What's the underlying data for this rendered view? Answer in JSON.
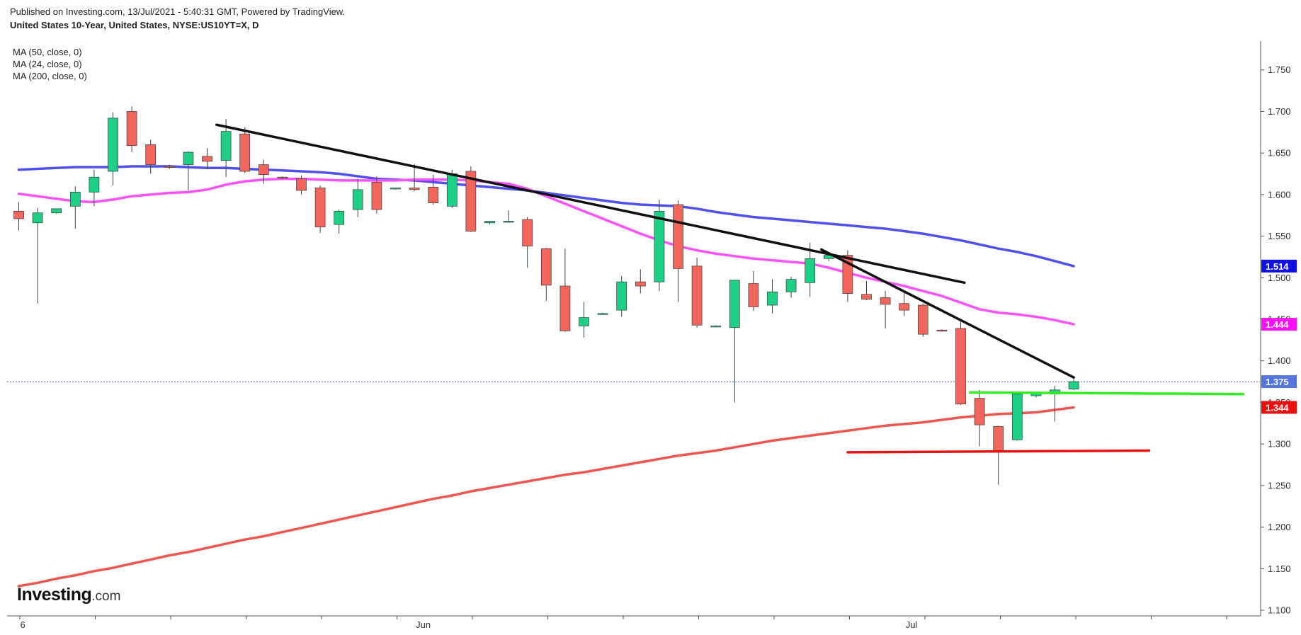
{
  "header": {
    "published": "Published on Investing.com, 13/Jul/2021 - 5:40:31 GMT, Powered by TradingView.",
    "instrument": "United States 10-Year, United States, NYSE:US10YT=X, D"
  },
  "legend": [
    "MA (50, close, 0)",
    "MA (24, close, 0)",
    "MA (200, close, 0)"
  ],
  "logo": {
    "main": "Investing",
    "suffix": ".com"
  },
  "colors": {
    "up": "#1ecf85",
    "down": "#f2665d",
    "wick": "#2e4a3c",
    "ma50": "#5050f0",
    "ma24": "#ff50ff",
    "ma200": "#f05550",
    "trend": "#111111",
    "support_green": "#33ee22",
    "support_red": "#ee1111",
    "last_price_line": "#4f6fd0"
  },
  "badges": [
    {
      "label": "1.514",
      "value": 1.514,
      "color": "#1010e0"
    },
    {
      "label": "1.444",
      "value": 1.444,
      "color": "#ff10ff"
    },
    {
      "label": "1.375",
      "value": 1.375,
      "color": "#5577dd"
    },
    {
      "label": "1.344",
      "value": 1.344,
      "color": "#ee1010"
    }
  ],
  "chart_data": {
    "type": "candlestick",
    "ylim": [
      1.1,
      1.76
    ],
    "y_ticks": [
      "1.750",
      "1.700",
      "1.650",
      "1.600",
      "1.550",
      "1.500",
      "1.450",
      "1.400",
      "1.350",
      "1.300",
      "1.250",
      "1.200",
      "1.150",
      "1.100"
    ],
    "x_labels": [
      {
        "label": "6",
        "index": 0
      },
      {
        "label": "Jun",
        "index": 21
      },
      {
        "label": "Jul",
        "index": 47
      }
    ],
    "grid": false,
    "last_price": 1.375,
    "candles": [
      {
        "o": 1.58,
        "h": 1.591,
        "l": 1.557,
        "c": 1.571
      },
      {
        "o": 1.566,
        "h": 1.584,
        "l": 1.469,
        "c": 1.578
      },
      {
        "o": 1.578,
        "h": 1.583,
        "l": 1.577,
        "c": 1.583
      },
      {
        "o": 1.586,
        "h": 1.61,
        "l": 1.559,
        "c": 1.603
      },
      {
        "o": 1.603,
        "h": 1.63,
        "l": 1.586,
        "c": 1.621
      },
      {
        "o": 1.628,
        "h": 1.699,
        "l": 1.611,
        "c": 1.692
      },
      {
        "o": 1.7,
        "h": 1.706,
        "l": 1.651,
        "c": 1.659
      },
      {
        "o": 1.66,
        "h": 1.666,
        "l": 1.625,
        "c": 1.636
      },
      {
        "o": 1.634,
        "h": 1.636,
        "l": 1.631,
        "c": 1.633
      },
      {
        "o": 1.636,
        "h": 1.652,
        "l": 1.605,
        "c": 1.651
      },
      {
        "o": 1.646,
        "h": 1.656,
        "l": 1.631,
        "c": 1.64
      },
      {
        "o": 1.641,
        "h": 1.691,
        "l": 1.621,
        "c": 1.676
      },
      {
        "o": 1.673,
        "h": 1.681,
        "l": 1.626,
        "c": 1.628
      },
      {
        "o": 1.636,
        "h": 1.642,
        "l": 1.613,
        "c": 1.624
      },
      {
        "o": 1.621,
        "h": 1.622,
        "l": 1.619,
        "c": 1.62
      },
      {
        "o": 1.619,
        "h": 1.623,
        "l": 1.6,
        "c": 1.605
      },
      {
        "o": 1.608,
        "h": 1.611,
        "l": 1.554,
        "c": 1.561
      },
      {
        "o": 1.564,
        "h": 1.582,
        "l": 1.553,
        "c": 1.58
      },
      {
        "o": 1.582,
        "h": 1.619,
        "l": 1.573,
        "c": 1.606
      },
      {
        "o": 1.615,
        "h": 1.622,
        "l": 1.577,
        "c": 1.582
      },
      {
        "o": 1.608,
        "h": 1.608,
        "l": 1.606,
        "c": 1.608
      },
      {
        "o": 1.608,
        "h": 1.637,
        "l": 1.604,
        "c": 1.606
      },
      {
        "o": 1.609,
        "h": 1.624,
        "l": 1.588,
        "c": 1.59
      },
      {
        "o": 1.586,
        "h": 1.63,
        "l": 1.584,
        "c": 1.625
      },
      {
        "o": 1.628,
        "h": 1.634,
        "l": 1.555,
        "c": 1.556
      },
      {
        "o": 1.566,
        "h": 1.568,
        "l": 1.564,
        "c": 1.568
      },
      {
        "o": 1.568,
        "h": 1.581,
        "l": 1.566,
        "c": 1.568
      },
      {
        "o": 1.57,
        "h": 1.573,
        "l": 1.512,
        "c": 1.538
      },
      {
        "o": 1.535,
        "h": 1.536,
        "l": 1.472,
        "c": 1.491
      },
      {
        "o": 1.49,
        "h": 1.535,
        "l": 1.435,
        "c": 1.436
      },
      {
        "o": 1.442,
        "h": 1.471,
        "l": 1.428,
        "c": 1.452
      },
      {
        "o": 1.457,
        "h": 1.458,
        "l": 1.456,
        "c": 1.457
      },
      {
        "o": 1.461,
        "h": 1.502,
        "l": 1.453,
        "c": 1.495
      },
      {
        "o": 1.495,
        "h": 1.51,
        "l": 1.481,
        "c": 1.49
      },
      {
        "o": 1.495,
        "h": 1.594,
        "l": 1.484,
        "c": 1.58
      },
      {
        "o": 1.588,
        "h": 1.593,
        "l": 1.471,
        "c": 1.511
      },
      {
        "o": 1.514,
        "h": 1.524,
        "l": 1.44,
        "c": 1.443
      },
      {
        "o": 1.442,
        "h": 1.443,
        "l": 1.441,
        "c": 1.442
      },
      {
        "o": 1.44,
        "h": 1.497,
        "l": 1.35,
        "c": 1.497
      },
      {
        "o": 1.493,
        "h": 1.508,
        "l": 1.46,
        "c": 1.465
      },
      {
        "o": 1.467,
        "h": 1.498,
        "l": 1.457,
        "c": 1.483
      },
      {
        "o": 1.483,
        "h": 1.501,
        "l": 1.476,
        "c": 1.498
      },
      {
        "o": 1.494,
        "h": 1.542,
        "l": 1.477,
        "c": 1.523
      },
      {
        "o": 1.523,
        "h": 1.53,
        "l": 1.52,
        "c": 1.527
      },
      {
        "o": 1.527,
        "h": 1.533,
        "l": 1.471,
        "c": 1.481
      },
      {
        "o": 1.48,
        "h": 1.496,
        "l": 1.473,
        "c": 1.474
      },
      {
        "o": 1.476,
        "h": 1.484,
        "l": 1.439,
        "c": 1.468
      },
      {
        "o": 1.469,
        "h": 1.484,
        "l": 1.454,
        "c": 1.461
      },
      {
        "o": 1.467,
        "h": 1.469,
        "l": 1.429,
        "c": 1.432
      },
      {
        "o": 1.437,
        "h": 1.438,
        "l": 1.435,
        "c": 1.436
      },
      {
        "o": 1.439,
        "h": 1.447,
        "l": 1.347,
        "c": 1.348
      },
      {
        "o": 1.355,
        "h": 1.365,
        "l": 1.297,
        "c": 1.323
      },
      {
        "o": 1.321,
        "h": 1.322,
        "l": 1.251,
        "c": 1.291
      },
      {
        "o": 1.305,
        "h": 1.362,
        "l": 1.304,
        "c": 1.36
      },
      {
        "o": 1.358,
        "h": 1.363,
        "l": 1.356,
        "c": 1.361
      },
      {
        "o": 1.36,
        "h": 1.37,
        "l": 1.327,
        "c": 1.365
      },
      {
        "o": 1.366,
        "h": 1.378,
        "l": 1.365,
        "c": 1.375
      }
    ],
    "moving_averages": [
      {
        "name": "MA (50, close, 0)",
        "key": "ma50",
        "from_index": 0,
        "values": [
          1.63,
          1.631,
          1.632,
          1.633,
          1.633,
          1.633,
          1.634,
          1.634,
          1.634,
          1.633,
          1.632,
          1.632,
          1.631,
          1.63,
          1.629,
          1.628,
          1.627,
          1.625,
          1.622,
          1.619,
          1.618,
          1.617,
          1.615,
          1.613,
          1.611,
          1.609,
          1.607,
          1.605,
          1.602,
          1.599,
          1.596,
          1.593,
          1.59,
          1.588,
          1.587,
          1.586,
          1.583,
          1.579,
          1.576,
          1.573,
          1.571,
          1.569,
          1.567,
          1.565,
          1.563,
          1.561,
          1.559,
          1.556,
          1.553,
          1.549,
          1.545,
          1.54,
          1.535,
          1.531,
          1.526,
          1.52,
          1.514
        ]
      },
      {
        "name": "MA (24, close, 0)",
        "key": "ma24",
        "from_index": 0,
        "values": [
          1.601,
          1.598,
          1.595,
          1.592,
          1.591,
          1.594,
          1.598,
          1.6,
          1.602,
          1.603,
          1.606,
          1.612,
          1.616,
          1.618,
          1.619,
          1.619,
          1.618,
          1.617,
          1.617,
          1.617,
          1.617,
          1.618,
          1.618,
          1.618,
          1.617,
          1.615,
          1.613,
          1.607,
          1.598,
          1.589,
          1.58,
          1.571,
          1.562,
          1.553,
          1.545,
          1.538,
          1.533,
          1.529,
          1.526,
          1.523,
          1.521,
          1.519,
          1.517,
          1.512,
          1.506,
          1.5,
          1.495,
          1.49,
          1.484,
          1.478,
          1.47,
          1.462,
          1.458,
          1.456,
          1.453,
          1.449,
          1.444
        ]
      },
      {
        "name": "MA (200, close, 0)",
        "key": "ma200",
        "from_index": 0,
        "values": [
          1.129,
          1.133,
          1.138,
          1.142,
          1.147,
          1.151,
          1.156,
          1.161,
          1.166,
          1.17,
          1.175,
          1.18,
          1.185,
          1.189,
          1.194,
          1.199,
          1.204,
          1.209,
          1.214,
          1.219,
          1.224,
          1.229,
          1.234,
          1.238,
          1.243,
          1.247,
          1.251,
          1.255,
          1.259,
          1.263,
          1.266,
          1.27,
          1.274,
          1.278,
          1.282,
          1.286,
          1.289,
          1.292,
          1.296,
          1.3,
          1.304,
          1.307,
          1.31,
          1.313,
          1.316,
          1.319,
          1.322,
          1.324,
          1.326,
          1.329,
          1.332,
          1.334,
          1.336,
          1.337,
          1.338,
          1.341,
          1.344
        ]
      }
    ],
    "annotations": [
      {
        "name": "downtrend-line-1",
        "type": "line",
        "color": "#111111",
        "x1": 10.5,
        "y1": 1.684,
        "x2": 50.2,
        "y2": 1.494
      },
      {
        "name": "downtrend-line-2",
        "type": "line",
        "color": "#111111",
        "x1": 42.6,
        "y1": 1.534,
        "x2": 56,
        "y2": 1.38
      },
      {
        "name": "green-support-line",
        "type": "line",
        "color": "#33ee22",
        "x1": 50.5,
        "y1": 1.362,
        "x2": 65,
        "y2": 1.36
      },
      {
        "name": "red-support-line",
        "type": "line",
        "color": "#ee1111",
        "x1": 44,
        "y1": 1.29,
        "x2": 60,
        "y2": 1.292
      }
    ]
  }
}
